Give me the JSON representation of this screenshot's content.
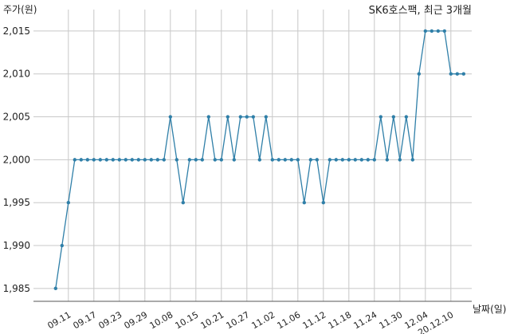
{
  "chart_data": {
    "type": "line",
    "title": "SK6호스팩, 최근 3개월",
    "ylabel": "주가(원)",
    "xlabel": "날짜(일)",
    "ylim": [
      1983.5,
      2017.5
    ],
    "yticks": [
      1985,
      1990,
      1995,
      2000,
      2005,
      2010,
      2015
    ],
    "ytick_labels": [
      "1,985",
      "1,990",
      "1,995",
      "2,000",
      "2,005",
      "2,010",
      "2,015"
    ],
    "xtick_labels": [
      "09.11",
      "09.17",
      "09.23",
      "09.29",
      "10.08",
      "10.15",
      "10.21",
      "10.27",
      "11.02",
      "11.06",
      "11.12",
      "11.18",
      "11.24",
      "11.30",
      "12.04",
      "20.12.10"
    ],
    "xtick_positions": [
      2,
      6,
      10,
      14,
      18,
      22,
      26,
      30,
      34,
      38,
      42,
      46,
      50,
      54,
      58,
      62
    ],
    "grid": true,
    "colors": {
      "line": "#2f7fa8",
      "grid": "#c8c8c8"
    },
    "series": [
      {
        "values": [
          1985,
          1990,
          1995,
          2000,
          2000,
          2000,
          2000,
          2000,
          2000,
          2000,
          2000,
          2000,
          2000,
          2000,
          2000,
          2000,
          2000,
          2000,
          2005,
          2000,
          1995,
          2000,
          2000,
          2000,
          2005,
          2000,
          2000,
          2005,
          2000,
          2005,
          2005,
          2005,
          2000,
          2005,
          2000,
          2000,
          2000,
          2000,
          2000,
          1995,
          2000,
          2000,
          1995,
          2000,
          2000,
          2000,
          2000,
          2000,
          2000,
          2000,
          2000,
          2005,
          2000,
          2005,
          2000,
          2005,
          2000,
          2010,
          2015,
          2015,
          2015,
          2015,
          2010,
          2010,
          2010
        ]
      }
    ]
  }
}
